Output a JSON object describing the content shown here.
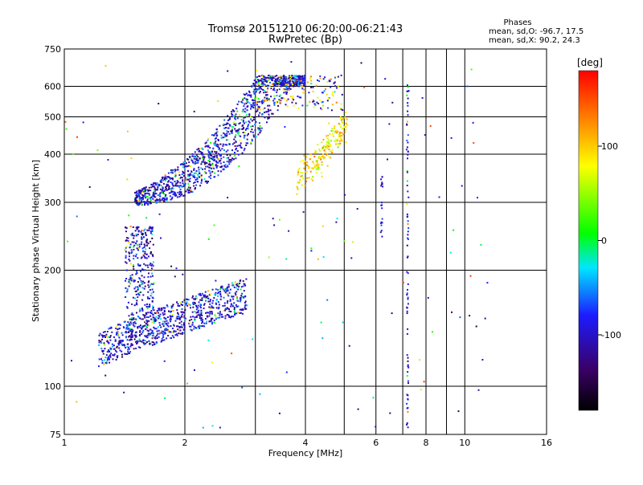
{
  "chart_data": {
    "type": "scatter",
    "title": "Tromsø 20151210 06:20:00-06:21:43",
    "subtitle": "RwPretec (Bp)",
    "xlabel": "Frequency [MHz]",
    "ylabel": "Stationary phase Virtual Height [km]",
    "x_scale": "log",
    "y_scale": "log",
    "xlim": [
      1,
      16
    ],
    "ylim": [
      75,
      750
    ],
    "x_ticks": [
      1,
      2,
      4,
      6,
      8,
      10,
      16
    ],
    "x_tick_labels": [
      "1",
      "2",
      "4",
      "6",
      "8",
      "10",
      "16"
    ],
    "x_minor_ticks": [
      3,
      5,
      7,
      9
    ],
    "y_ticks": [
      75,
      100,
      200,
      300,
      400,
      500,
      600,
      750
    ],
    "y_tick_labels": [
      "75",
      "100",
      "200",
      "300",
      "400",
      "500",
      "600",
      "750"
    ],
    "grid": true,
    "legend": {
      "title": "Phases",
      "lines": [
        "mean, sd,O: -96.7, 17.5",
        "mean, sd,X:  90.2, 24.3"
      ]
    },
    "colorbar": {
      "label": "[deg]",
      "range": [
        -180,
        180
      ],
      "ticks": [
        100,
        0,
        -100
      ],
      "tick_labels": [
        "100",
        "0",
        "-100"
      ],
      "colors": [
        "#000000",
        "#3a0066",
        "#1c1cff",
        "#00e6ff",
        "#00ff00",
        "#ffff00",
        "#ff8000",
        "#ff0000"
      ]
    },
    "series": [
      {
        "trace": "F-layer",
        "freq_range": [
          1.5,
          5.0
        ],
        "height_range": [
          290,
          640
        ],
        "phase_mean": -96.7
      },
      {
        "trace": "X-mode F",
        "freq_range": [
          3.8,
          5.1
        ],
        "height_range": [
          330,
          520
        ],
        "phase_mean": 90.2
      },
      {
        "trace": "E/F1 low",
        "freq_range": [
          1.2,
          2.85
        ],
        "height_range": [
          115,
          260
        ],
        "phase_mean": -96.7
      },
      {
        "trace": "interference line",
        "freq_range": [
          7.2,
          7.2
        ],
        "height_range": [
          78,
          610
        ],
        "phase_mean": -96.7
      }
    ]
  }
}
